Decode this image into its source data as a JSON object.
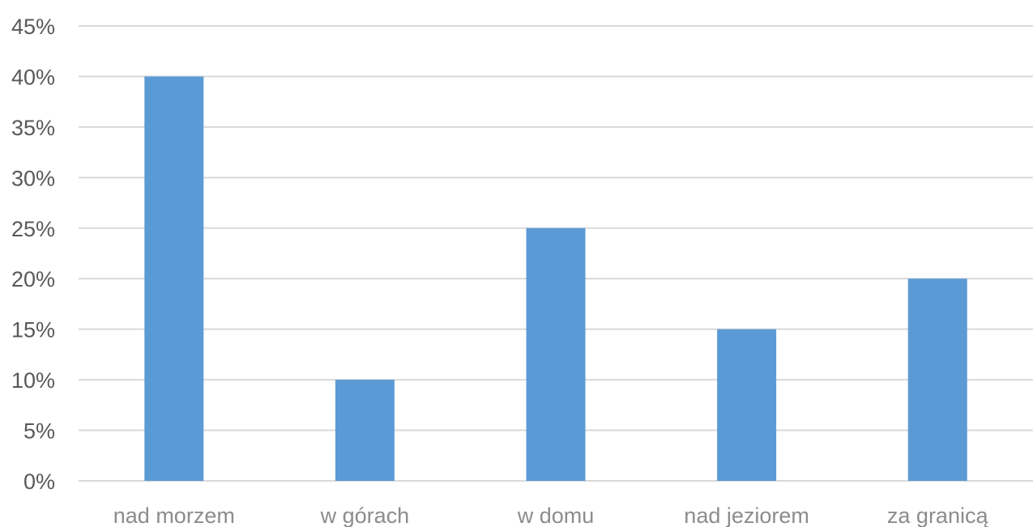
{
  "chart_data": {
    "type": "bar",
    "title": "",
    "xlabel": "",
    "ylabel": "",
    "categories": [
      "nad morzem",
      "w górach",
      "w domu",
      "nad jeziorem",
      "za granicą"
    ],
    "values": [
      40,
      10,
      25,
      15,
      20
    ],
    "value_unit": "%",
    "ylim": [
      0,
      45
    ],
    "yticks": [
      0,
      5,
      10,
      15,
      20,
      25,
      30,
      35,
      40,
      45
    ],
    "ytick_labels": [
      "0%",
      "5%",
      "10%",
      "15%",
      "20%",
      "25%",
      "30%",
      "35%",
      "40%",
      "45%"
    ],
    "grid": true,
    "legend": "none",
    "bar_color": "#5b9bd5",
    "grid_color": "#d9d9d9"
  }
}
